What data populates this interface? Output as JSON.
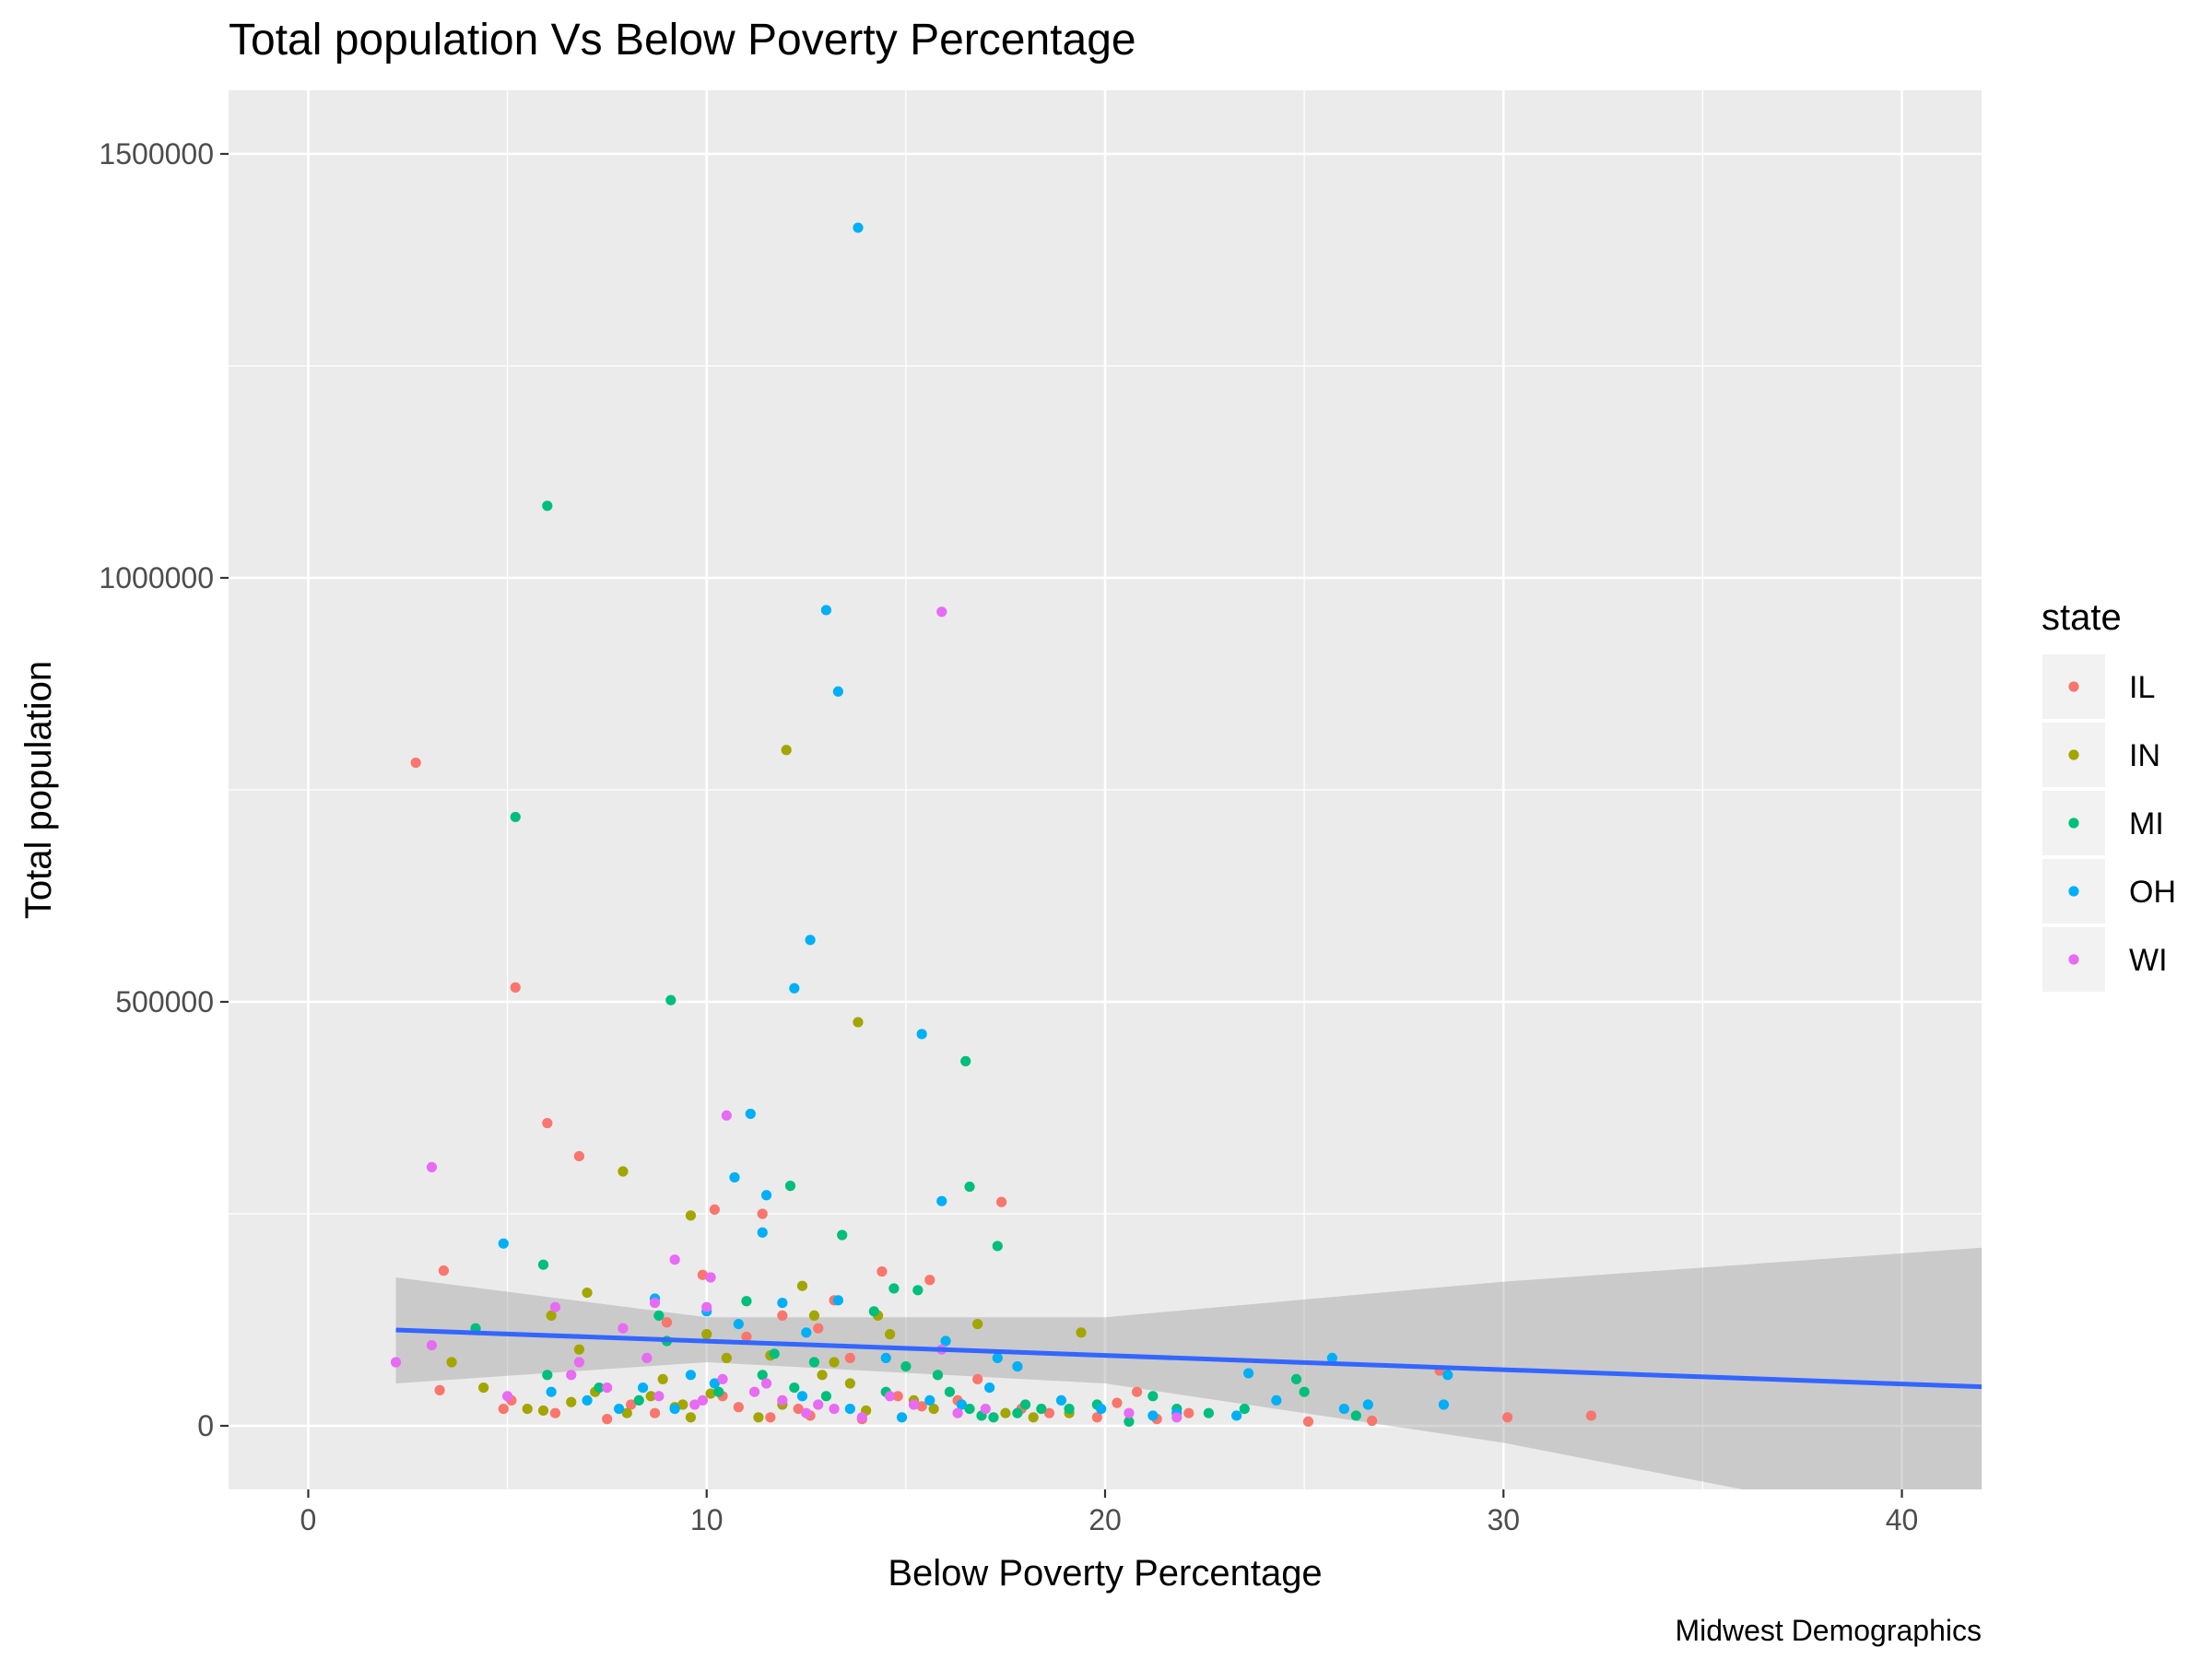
{
  "chart_data": {
    "type": "scatter",
    "title": "Total population Vs Below Poverty Percentage",
    "xlabel": "Below Poverty Percentage",
    "ylabel": "Total population",
    "caption": "Midwest Demographics",
    "xlim": [
      -2,
      42
    ],
    "ylim": [
      -75000,
      1575000
    ],
    "x_ticks": [
      0,
      10,
      20,
      30,
      40
    ],
    "x_tick_labels": [
      "0",
      "10",
      "20",
      "30",
      "40"
    ],
    "y_ticks": [
      0,
      500000,
      1000000,
      1500000
    ],
    "y_tick_labels": [
      "0",
      "500000",
      "1000000",
      "1500000"
    ],
    "grid": true,
    "legend": {
      "title": "state",
      "position": "right"
    },
    "series": [
      {
        "name": "IL",
        "color": "#F8766D",
        "points": [
          [
            2.7,
            782000
          ],
          [
            3.4,
            183000
          ],
          [
            3.3,
            42000
          ],
          [
            5.2,
            517000
          ],
          [
            6.0,
            357000
          ],
          [
            6.8,
            318000
          ],
          [
            5.1,
            30000
          ],
          [
            4.9,
            20000
          ],
          [
            6.2,
            15000
          ],
          [
            7.5,
            8000
          ],
          [
            8.1,
            25000
          ],
          [
            9.0,
            122000
          ],
          [
            9.9,
            178000
          ],
          [
            10.2,
            255000
          ],
          [
            10.4,
            35000
          ],
          [
            11.0,
            105000
          ],
          [
            11.4,
            250000
          ],
          [
            11.6,
            10000
          ],
          [
            11.9,
            130000
          ],
          [
            12.3,
            20000
          ],
          [
            12.8,
            115000
          ],
          [
            13.2,
            148000
          ],
          [
            13.6,
            80000
          ],
          [
            14.4,
            182000
          ],
          [
            14.8,
            35000
          ],
          [
            15.4,
            23000
          ],
          [
            15.6,
            172000
          ],
          [
            15.8,
            60000
          ],
          [
            16.3,
            30000
          ],
          [
            16.8,
            55000
          ],
          [
            17.4,
            264000
          ],
          [
            17.9,
            20000
          ],
          [
            18.6,
            15000
          ],
          [
            19.8,
            10000
          ],
          [
            20.3,
            27000
          ],
          [
            20.8,
            40000
          ],
          [
            21.3,
            8000
          ],
          [
            22.1,
            15000
          ],
          [
            25.1,
            5000
          ],
          [
            26.7,
            6000
          ],
          [
            28.4,
            65000
          ],
          [
            30.1,
            10000
          ],
          [
            32.2,
            12000
          ],
          [
            8.7,
            15000
          ],
          [
            12.6,
            12000
          ],
          [
            13.9,
            8000
          ],
          [
            10.8,
            22000
          ]
        ]
      },
      {
        "name": "IN",
        "color": "#A3A500",
        "points": [
          [
            12.0,
            797000
          ],
          [
            13.8,
            476000
          ],
          [
            7.9,
            300000
          ],
          [
            9.6,
            248000
          ],
          [
            7.0,
            157000
          ],
          [
            6.1,
            130000
          ],
          [
            3.6,
            75000
          ],
          [
            4.4,
            45000
          ],
          [
            5.5,
            20000
          ],
          [
            6.6,
            28000
          ],
          [
            7.2,
            40000
          ],
          [
            8.0,
            15000
          ],
          [
            8.6,
            35000
          ],
          [
            9.2,
            22000
          ],
          [
            9.6,
            10000
          ],
          [
            10.0,
            108000
          ],
          [
            10.5,
            80000
          ],
          [
            11.3,
            10000
          ],
          [
            11.6,
            83000
          ],
          [
            12.4,
            165000
          ],
          [
            12.7,
            130000
          ],
          [
            13.2,
            75000
          ],
          [
            13.6,
            50000
          ],
          [
            14.3,
            130000
          ],
          [
            14.6,
            108000
          ],
          [
            15.2,
            30000
          ],
          [
            15.7,
            20000
          ],
          [
            16.8,
            120000
          ],
          [
            17.5,
            15000
          ],
          [
            18.2,
            10000
          ],
          [
            19.4,
            110000
          ],
          [
            19.1,
            15000
          ],
          [
            6.8,
            90000
          ],
          [
            8.9,
            55000
          ],
          [
            11.9,
            25000
          ],
          [
            12.9,
            60000
          ],
          [
            10.1,
            38000
          ],
          [
            14.0,
            18000
          ],
          [
            5.9,
            18000
          ],
          [
            9.4,
            25000
          ]
        ]
      },
      {
        "name": "MI",
        "color": "#00BF7D",
        "points": [
          [
            6.0,
            1085000
          ],
          [
            5.2,
            718000
          ],
          [
            9.1,
            502000
          ],
          [
            16.5,
            430000
          ],
          [
            12.1,
            283000
          ],
          [
            16.6,
            282000
          ],
          [
            13.4,
            225000
          ],
          [
            17.3,
            212000
          ],
          [
            5.9,
            190000
          ],
          [
            11.0,
            147000
          ],
          [
            14.7,
            162000
          ],
          [
            15.3,
            160000
          ],
          [
            14.2,
            135000
          ],
          [
            9.0,
            100000
          ],
          [
            8.8,
            130000
          ],
          [
            11.7,
            85000
          ],
          [
            12.7,
            75000
          ],
          [
            14.5,
            40000
          ],
          [
            15.0,
            70000
          ],
          [
            15.8,
            60000
          ],
          [
            16.1,
            40000
          ],
          [
            16.6,
            20000
          ],
          [
            17.2,
            10000
          ],
          [
            17.8,
            15000
          ],
          [
            18.0,
            25000
          ],
          [
            18.4,
            20000
          ],
          [
            19.1,
            20000
          ],
          [
            19.8,
            25000
          ],
          [
            20.6,
            5000
          ],
          [
            21.2,
            35000
          ],
          [
            21.8,
            20000
          ],
          [
            22.6,
            15000
          ],
          [
            23.5,
            20000
          ],
          [
            24.8,
            55000
          ],
          [
            25.0,
            40000
          ],
          [
            26.3,
            12000
          ],
          [
            4.2,
            115000
          ],
          [
            6.0,
            60000
          ],
          [
            7.3,
            45000
          ],
          [
            8.3,
            30000
          ],
          [
            10.3,
            40000
          ],
          [
            11.4,
            60000
          ],
          [
            12.2,
            45000
          ],
          [
            13.0,
            35000
          ],
          [
            16.9,
            12000
          ]
        ]
      },
      {
        "name": "OH",
        "color": "#00B0F6",
        "points": [
          [
            13.8,
            1413000
          ],
          [
            13.0,
            962000
          ],
          [
            13.3,
            866000
          ],
          [
            12.6,
            573000
          ],
          [
            12.2,
            516000
          ],
          [
            15.4,
            462000
          ],
          [
            11.1,
            368000
          ],
          [
            10.7,
            293000
          ],
          [
            11.5,
            272000
          ],
          [
            15.9,
            265000
          ],
          [
            11.4,
            228000
          ],
          [
            4.9,
            215000
          ],
          [
            8.7,
            150000
          ],
          [
            10.0,
            135000
          ],
          [
            10.8,
            120000
          ],
          [
            11.9,
            145000
          ],
          [
            13.3,
            148000
          ],
          [
            12.5,
            110000
          ],
          [
            14.5,
            80000
          ],
          [
            16.0,
            100000
          ],
          [
            17.3,
            80000
          ],
          [
            17.8,
            70000
          ],
          [
            18.9,
            30000
          ],
          [
            19.9,
            20000
          ],
          [
            21.2,
            12000
          ],
          [
            21.8,
            15000
          ],
          [
            23.3,
            12000
          ],
          [
            23.6,
            62000
          ],
          [
            24.3,
            30000
          ],
          [
            25.7,
            80000
          ],
          [
            26.0,
            20000
          ],
          [
            26.6,
            25000
          ],
          [
            28.5,
            25000
          ],
          [
            28.6,
            60000
          ],
          [
            6.1,
            40000
          ],
          [
            7.0,
            30000
          ],
          [
            8.4,
            45000
          ],
          [
            9.2,
            20000
          ],
          [
            10.2,
            50000
          ],
          [
            12.4,
            35000
          ],
          [
            13.6,
            20000
          ],
          [
            14.9,
            10000
          ],
          [
            15.6,
            30000
          ],
          [
            16.4,
            25000
          ],
          [
            17.1,
            45000
          ],
          [
            7.8,
            20000
          ],
          [
            9.6,
            60000
          ]
        ]
      },
      {
        "name": "WI",
        "color": "#E76BF3",
        "points": [
          [
            15.9,
            960000
          ],
          [
            10.5,
            366000
          ],
          [
            3.1,
            305000
          ],
          [
            9.2,
            196000
          ],
          [
            10.1,
            175000
          ],
          [
            8.7,
            145000
          ],
          [
            10.0,
            140000
          ],
          [
            6.2,
            140000
          ],
          [
            3.1,
            95000
          ],
          [
            2.2,
            75000
          ],
          [
            6.6,
            60000
          ],
          [
            7.5,
            45000
          ],
          [
            8.8,
            35000
          ],
          [
            9.7,
            25000
          ],
          [
            10.4,
            55000
          ],
          [
            11.2,
            40000
          ],
          [
            11.9,
            30000
          ],
          [
            12.5,
            15000
          ],
          [
            13.2,
            20000
          ],
          [
            13.9,
            10000
          ],
          [
            14.6,
            35000
          ],
          [
            15.2,
            25000
          ],
          [
            15.9,
            90000
          ],
          [
            16.3,
            15000
          ],
          [
            17.0,
            20000
          ],
          [
            20.6,
            15000
          ],
          [
            21.8,
            10000
          ],
          [
            5.0,
            35000
          ],
          [
            6.8,
            75000
          ],
          [
            7.9,
            115000
          ],
          [
            8.5,
            80000
          ],
          [
            9.9,
            30000
          ],
          [
            11.5,
            50000
          ],
          [
            12.8,
            25000
          ]
        ]
      }
    ],
    "trend_line": {
      "type": "linear",
      "color": "#3366FF",
      "x": [
        2.2,
        42
      ],
      "y": [
        113000,
        46000
      ]
    },
    "confidence_band": {
      "color": "#999999",
      "x": [
        2.2,
        10,
        20,
        30,
        36,
        42
      ],
      "upper": [
        175000,
        128000,
        128000,
        170000,
        190000,
        210000
      ],
      "lower": [
        50000,
        75000,
        50000,
        -20000,
        -75000,
        -120000
      ]
    }
  }
}
